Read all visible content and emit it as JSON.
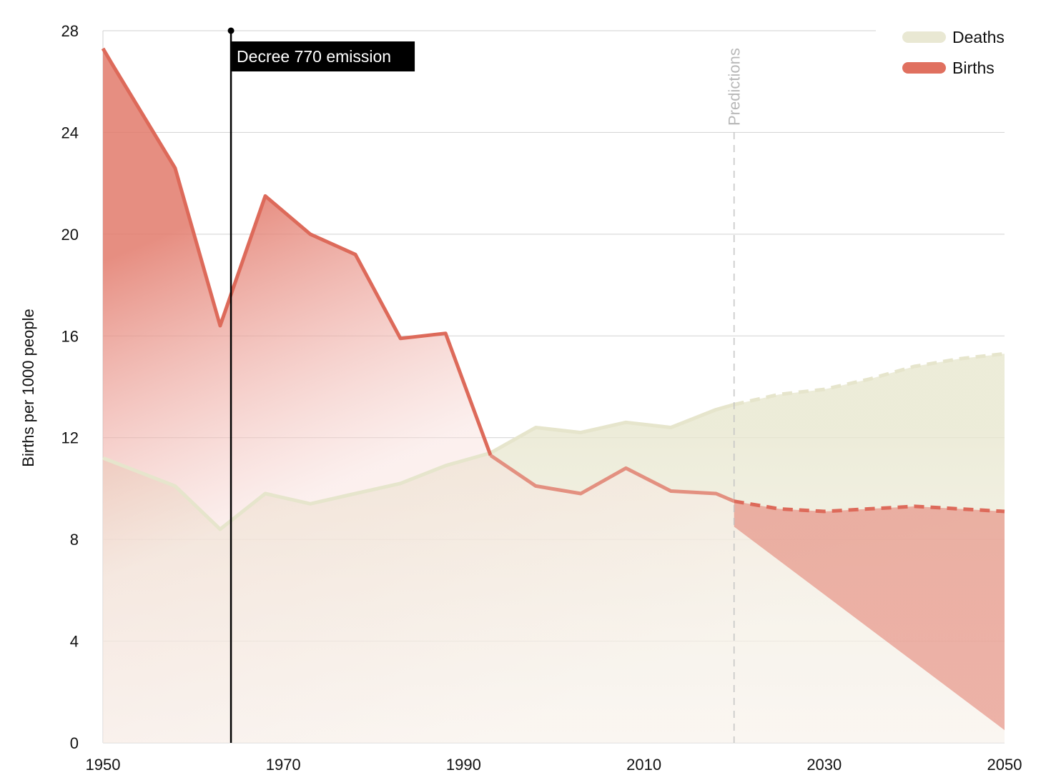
{
  "chart_data": {
    "type": "area",
    "ylabel": "Births per 1000 people",
    "xlim": [
      1950,
      2050
    ],
    "ylim": [
      0,
      28
    ],
    "x_ticks": [
      1950,
      1970,
      1990,
      2010,
      2030,
      2050
    ],
    "y_ticks": [
      0,
      4,
      8,
      12,
      16,
      20,
      24,
      28
    ],
    "grid": true,
    "legend_position": "top-right",
    "prediction_start": 2020,
    "prediction_label": "Predictions",
    "annotation": {
      "x": 1964.2,
      "label": "Decree 770 emission"
    },
    "series": [
      {
        "name": "Deaths",
        "color": "#e9e8d3",
        "x": [
          1950,
          1958,
          1963,
          1968,
          1973,
          1978,
          1983,
          1988,
          1993,
          1998,
          2003,
          2008,
          2013,
          2018,
          2020,
          2025,
          2030,
          2035,
          2040,
          2045,
          2050
        ],
        "values": [
          11.2,
          10.1,
          8.4,
          9.8,
          9.4,
          9.8,
          10.2,
          10.9,
          11.4,
          12.4,
          12.2,
          12.6,
          12.4,
          13.1,
          13.3,
          13.7,
          13.9,
          14.3,
          14.8,
          15.1,
          15.3
        ]
      },
      {
        "name": "Births",
        "color": "#e0705f",
        "x": [
          1950,
          1951,
          1958,
          1963,
          1968,
          1973,
          1978,
          1983,
          1988,
          1993,
          1998,
          2003,
          2008,
          2013,
          2018,
          2020,
          2025,
          2030,
          2035,
          2040,
          2045,
          2050
        ],
        "values": [
          27.3,
          26.7,
          22.6,
          16.4,
          21.5,
          20.0,
          19.2,
          15.9,
          16.1,
          11.3,
          10.1,
          9.8,
          10.8,
          9.9,
          9.8,
          9.5,
          9.2,
          9.1,
          9.2,
          9.3,
          9.2,
          9.1
        ]
      }
    ]
  }
}
